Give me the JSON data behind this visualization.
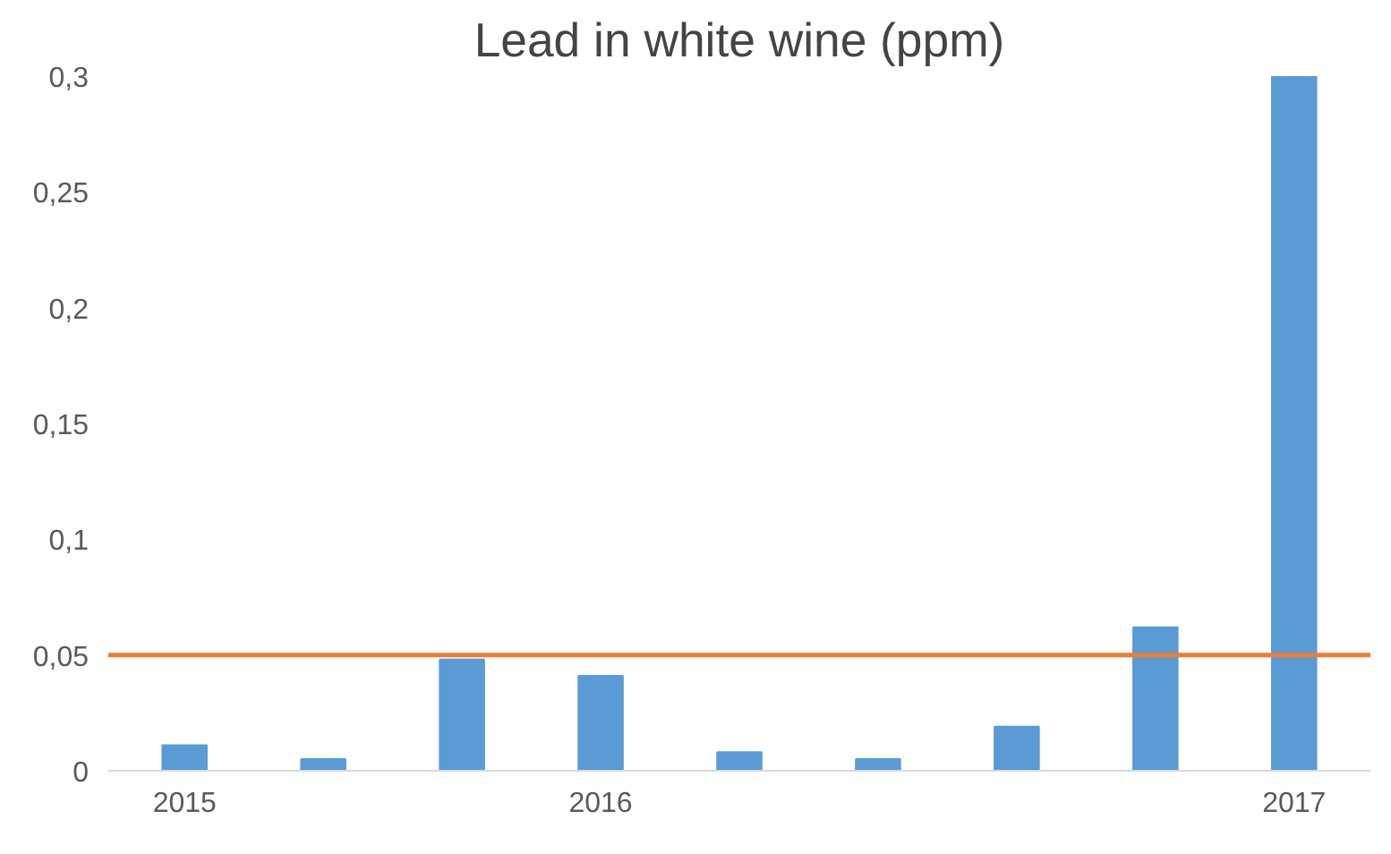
{
  "chart_data": {
    "type": "bar",
    "title": "Lead in white wine (ppm)",
    "categories": [
      "2015",
      null,
      null,
      "2016",
      null,
      null,
      null,
      null,
      "2017"
    ],
    "values": [
      0.011,
      0.005,
      0.048,
      0.041,
      0.008,
      0.005,
      0.019,
      0.062,
      0.3
    ],
    "color": "#5b9bd5",
    "ylim": [
      0,
      0.3
    ],
    "yticks": [
      0,
      {
        "value": 0.05,
        "label": "0,05"
      },
      {
        "value": 0.1,
        "label": "0,1"
      },
      {
        "value": 0.15,
        "label": "0,15"
      },
      {
        "value": 0.2,
        "label": "0,2"
      },
      {
        "value": 0.25,
        "label": "0,25"
      },
      {
        "value": 0.3,
        "label": "0,3"
      }
    ],
    "ref_lines": [
      {
        "axis": "y",
        "value": 0.05,
        "label": null,
        "color": "#ed7d31"
      }
    ],
    "grid": false
  }
}
